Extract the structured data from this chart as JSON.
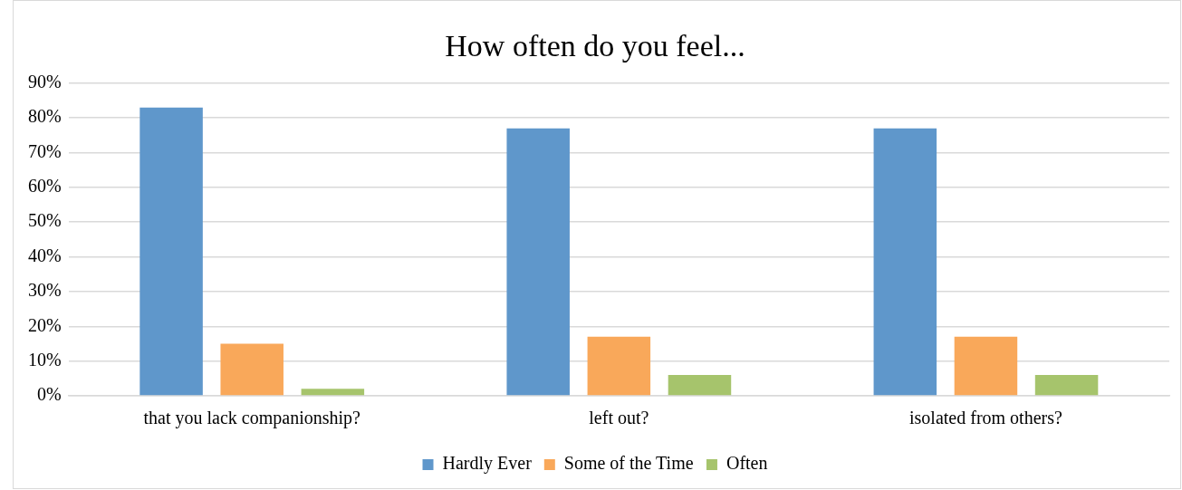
{
  "chart_data": {
    "type": "bar",
    "title": "How often do you feel...",
    "categories": [
      "that you lack companionship?",
      "left out?",
      "isolated from others?"
    ],
    "series": [
      {
        "name": "Hardly Ever",
        "color": "#5f97cb",
        "values": [
          83,
          77,
          77
        ]
      },
      {
        "name": "Some of the Time",
        "color": "#f9a85a",
        "values": [
          15,
          17,
          17
        ]
      },
      {
        "name": "Often",
        "color": "#a6c46c",
        "values": [
          2,
          6,
          6
        ]
      }
    ],
    "ylim": [
      0,
      90
    ],
    "yticks": [
      {
        "value": 0,
        "label": "0%"
      },
      {
        "value": 10,
        "label": "10%"
      },
      {
        "value": 20,
        "label": "20%"
      },
      {
        "value": 30,
        "label": "30%"
      },
      {
        "value": 40,
        "label": "40%"
      },
      {
        "value": 50,
        "label": "50%"
      },
      {
        "value": 60,
        "label": "60%"
      },
      {
        "value": 70,
        "label": "70%"
      },
      {
        "value": 80,
        "label": "80%"
      },
      {
        "value": 90,
        "label": "90%"
      }
    ],
    "grid": "y",
    "legend": "bottom"
  }
}
